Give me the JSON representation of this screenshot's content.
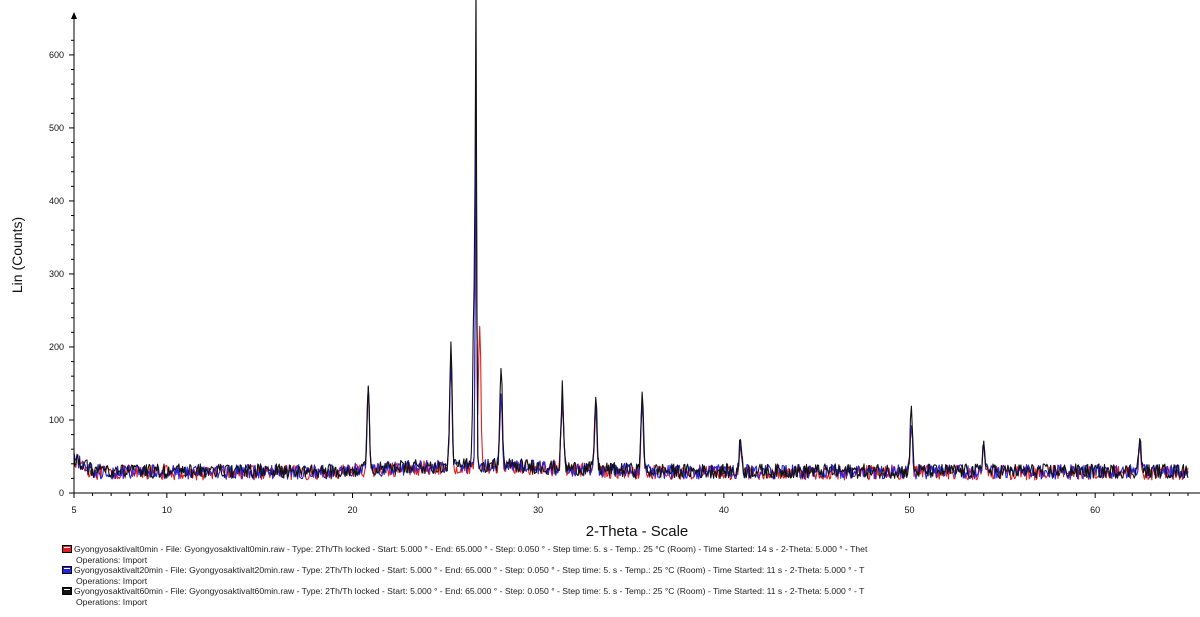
{
  "chart_data": {
    "type": "line",
    "title": "",
    "xlabel": "2-Theta - Scale",
    "ylabel": "Lin (Counts)",
    "xlim": [
      5,
      65
    ],
    "ylim": [
      0,
      630
    ],
    "x_ticks": [
      5,
      10,
      20,
      30,
      40,
      50,
      60
    ],
    "y_ticks": [
      0,
      100,
      200,
      300,
      400,
      500,
      600
    ],
    "grid": false,
    "series": [
      {
        "name": "Gyongyosaktivalt0min",
        "color": "#e02020",
        "baseline": 28,
        "peaks": [
          [
            20.85,
            110
          ],
          [
            25.3,
            140
          ],
          [
            26.65,
            505
          ],
          [
            26.85,
            200
          ],
          [
            28.0,
            100
          ],
          [
            31.3,
            95
          ],
          [
            33.1,
            80
          ],
          [
            35.6,
            90
          ],
          [
            40.9,
            40
          ],
          [
            50.1,
            65
          ],
          [
            54.0,
            35
          ],
          [
            62.4,
            35
          ]
        ]
      },
      {
        "name": "Gyongyosaktivalt20min",
        "color": "#2424e0",
        "baseline": 29,
        "peaks": [
          [
            20.85,
            115
          ],
          [
            25.3,
            145
          ],
          [
            26.65,
            530
          ],
          [
            28.0,
            105
          ],
          [
            31.3,
            100
          ],
          [
            33.1,
            85
          ],
          [
            35.6,
            95
          ],
          [
            40.9,
            42
          ],
          [
            50.1,
            70
          ],
          [
            54.0,
            38
          ],
          [
            62.4,
            38
          ]
        ]
      },
      {
        "name": "Gyongyosaktivalt60min",
        "color": "#111111",
        "baseline": 30,
        "peaks": [
          [
            20.85,
            120
          ],
          [
            25.3,
            165
          ],
          [
            26.55,
            240
          ],
          [
            26.65,
            600
          ],
          [
            28.0,
            140
          ],
          [
            31.3,
            110
          ],
          [
            33.1,
            100
          ],
          [
            35.6,
            110
          ],
          [
            40.9,
            45
          ],
          [
            50.1,
            85
          ],
          [
            54.0,
            40
          ],
          [
            62.4,
            45
          ]
        ]
      }
    ],
    "legend_position": "bottom",
    "legend": [
      {
        "line1": "Gyongyosaktivalt0min - File: Gyongyosaktivalt0min.raw - Type: 2Th/Th locked - Start: 5.000 ° - End: 65.000 ° - Step: 0.050 ° - Step time: 5. s - Temp.: 25 °C (Room) - Time Started: 14 s - 2-Theta: 5.000 ° - Thet",
        "line2": "Operations: Import"
      },
      {
        "line1": "Gyongyosaktivalt20min - File: Gyongyosaktivalt20min.raw - Type: 2Th/Th locked - Start: 5.000 ° - End: 65.000 ° - Step: 0.050 ° - Step time: 5. s - Temp.: 25 °C (Room) - Time Started: 11 s - 2-Theta: 5.000 ° - T",
        "line2": "Operations: Import"
      },
      {
        "line1": "Gyongyosaktivalt60min - File: Gyongyosaktivalt60min.raw - Type: 2Th/Th locked - Start: 5.000 ° - End: 65.000 ° - Step: 0.050 ° - Step time: 5. s - Temp.: 25 °C (Room) - Time Started: 11 s - 2-Theta: 5.000 ° - T",
        "line2": "Operations: Import"
      }
    ]
  }
}
